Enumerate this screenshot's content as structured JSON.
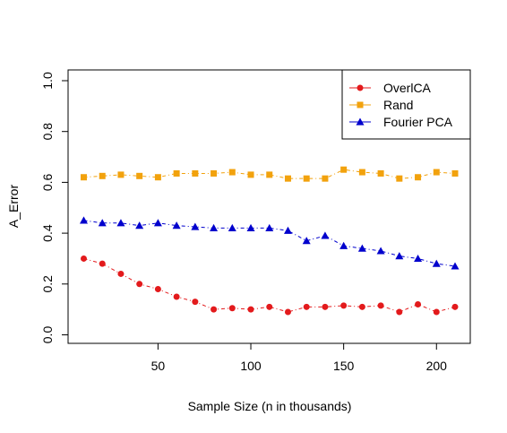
{
  "chart_data": {
    "type": "line",
    "title": "",
    "xlabel": "Sample Size (n in thousands)",
    "ylabel": "A_Error",
    "xlim": [
      10,
      210
    ],
    "ylim": [
      0,
      1
    ],
    "xticks": [
      "50",
      "100",
      "150",
      "200"
    ],
    "yticks": [
      "0.0",
      "0.2",
      "0.4",
      "0.6",
      "0.8",
      "1.0"
    ],
    "grid": false,
    "legend_position": "top-right",
    "x": [
      10,
      20,
      30,
      40,
      50,
      60,
      70,
      80,
      90,
      100,
      110,
      120,
      130,
      140,
      150,
      160,
      170,
      180,
      190,
      200,
      210
    ],
    "series": [
      {
        "name": "OverlCA",
        "color": "#e31a1c",
        "marker": "circle",
        "values": [
          0.3,
          0.28,
          0.24,
          0.2,
          0.18,
          0.15,
          0.13,
          0.1,
          0.105,
          0.1,
          0.11,
          0.09,
          0.11,
          0.11,
          0.115,
          0.11,
          0.115,
          0.09,
          0.12,
          0.09,
          0.11
        ]
      },
      {
        "name": "Rand",
        "color": "#f2a20d",
        "marker": "square",
        "values": [
          0.62,
          0.625,
          0.63,
          0.625,
          0.62,
          0.635,
          0.635,
          0.635,
          0.64,
          0.63,
          0.63,
          0.615,
          0.615,
          0.615,
          0.65,
          0.64,
          0.635,
          0.615,
          0.62,
          0.64,
          0.635
        ]
      },
      {
        "name": "Fourier PCA",
        "color": "#0000cd",
        "marker": "triangle",
        "values": [
          0.45,
          0.44,
          0.44,
          0.43,
          0.44,
          0.43,
          0.425,
          0.42,
          0.42,
          0.42,
          0.42,
          0.41,
          0.37,
          0.39,
          0.35,
          0.34,
          0.33,
          0.31,
          0.3,
          0.28,
          0.27
        ]
      }
    ]
  }
}
